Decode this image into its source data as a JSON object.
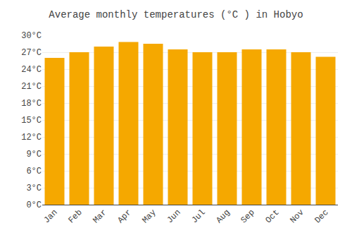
{
  "chart_data": {
    "type": "bar",
    "title": "Average monthly temperatures (°C ) in Hobyo",
    "categories": [
      "Jan",
      "Feb",
      "Mar",
      "Apr",
      "May",
      "Jun",
      "Jul",
      "Aug",
      "Sep",
      "Oct",
      "Nov",
      "Dec"
    ],
    "values": [
      26.0,
      27.0,
      28.0,
      28.8,
      28.5,
      27.5,
      27.0,
      27.0,
      27.5,
      27.5,
      27.0,
      26.2
    ],
    "color": "#F5A800",
    "ylim": [
      0,
      30
    ],
    "yticks": [
      {
        "value": 0,
        "label": "0°C"
      },
      {
        "value": 3,
        "label": "3°C"
      },
      {
        "value": 6,
        "label": "6°C"
      },
      {
        "value": 9,
        "label": "9°C"
      },
      {
        "value": 12,
        "label": "12°C"
      },
      {
        "value": 15,
        "label": "15°C"
      },
      {
        "value": 18,
        "label": "18°C"
      },
      {
        "value": 21,
        "label": "21°C"
      },
      {
        "value": 24,
        "label": "24°C"
      },
      {
        "value": 27,
        "label": "27°C"
      },
      {
        "value": 30,
        "label": "30°C"
      }
    ],
    "grid": true
  }
}
